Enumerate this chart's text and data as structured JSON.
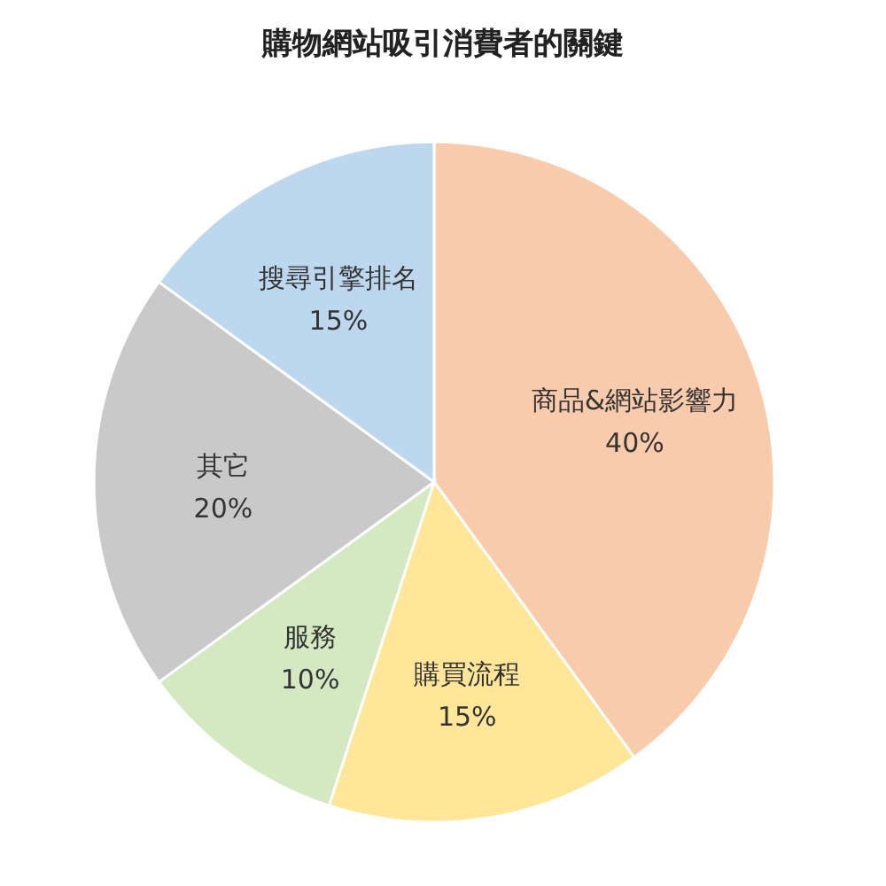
{
  "chart_data": {
    "type": "pie",
    "title": "購物網站吸引消費者的關鍵",
    "categories": [
      "商品&網站影響力",
      "購買流程",
      "服務",
      "其它",
      "搜尋引擎排名"
    ],
    "values": [
      40,
      15,
      10,
      20,
      15
    ],
    "value_labels": [
      "40%",
      "15%",
      "10%",
      "20%",
      "15%"
    ],
    "colors": [
      "#f8cbad",
      "#ffe699",
      "#d4e8c2",
      "#c9c9c9",
      "#bdd7ee"
    ]
  }
}
